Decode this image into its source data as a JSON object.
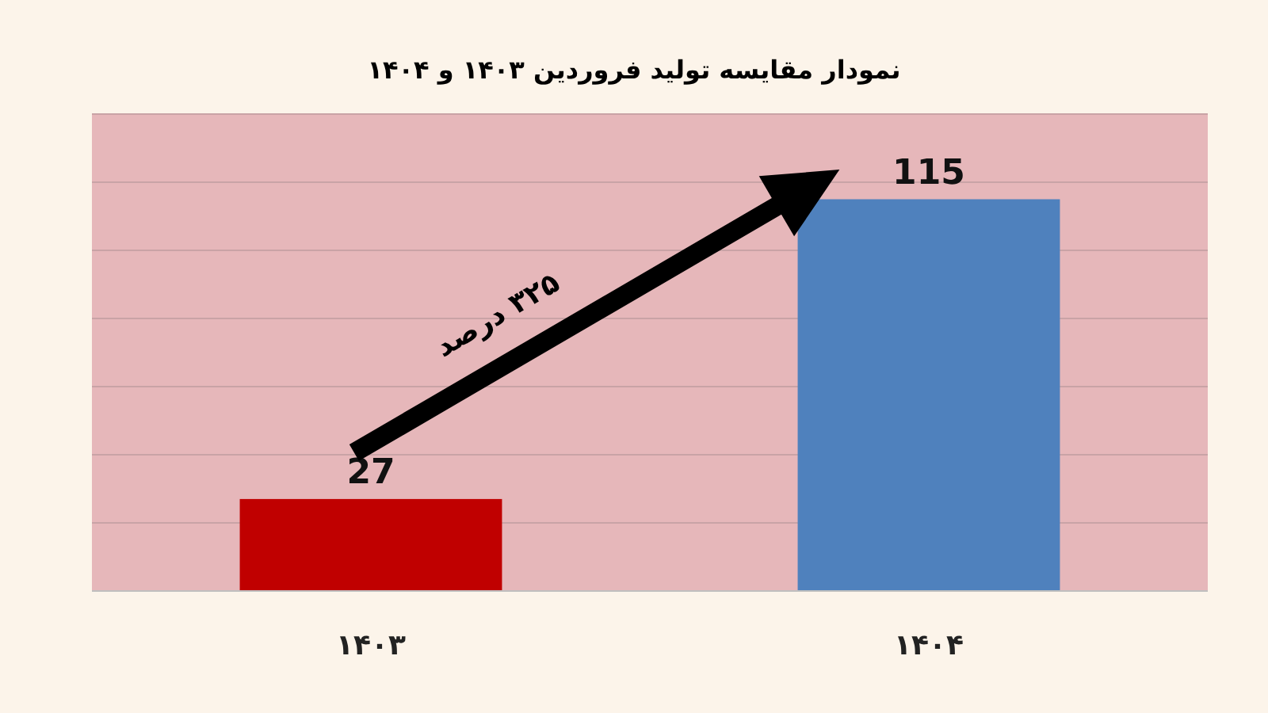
{
  "chart_data": {
    "type": "bar",
    "title": "نمودار  مقایسه تولید فروردین ۱۴۰۳ و ۱۴۰۴",
    "categories": [
      "۱۴۰۳",
      "۱۴۰۴"
    ],
    "values": [
      27,
      115
    ],
    "colors": [
      "#c00000",
      "#4f81bd"
    ],
    "data_labels": true,
    "ylim": [
      0,
      140
    ],
    "yticks": [
      {
        "value": 0,
        "label": null
      },
      {
        "value": 20,
        "label": null
      },
      {
        "value": 40,
        "label": null
      },
      {
        "value": 60,
        "label": null
      },
      {
        "value": 80,
        "label": null
      },
      {
        "value": 100,
        "label": null
      },
      {
        "value": 120,
        "label": null
      },
      {
        "value": 140,
        "label": null
      }
    ],
    "tick_labels": "x",
    "grid": "y",
    "annotations": [
      "۳۲۵ درصد"
    ]
  }
}
